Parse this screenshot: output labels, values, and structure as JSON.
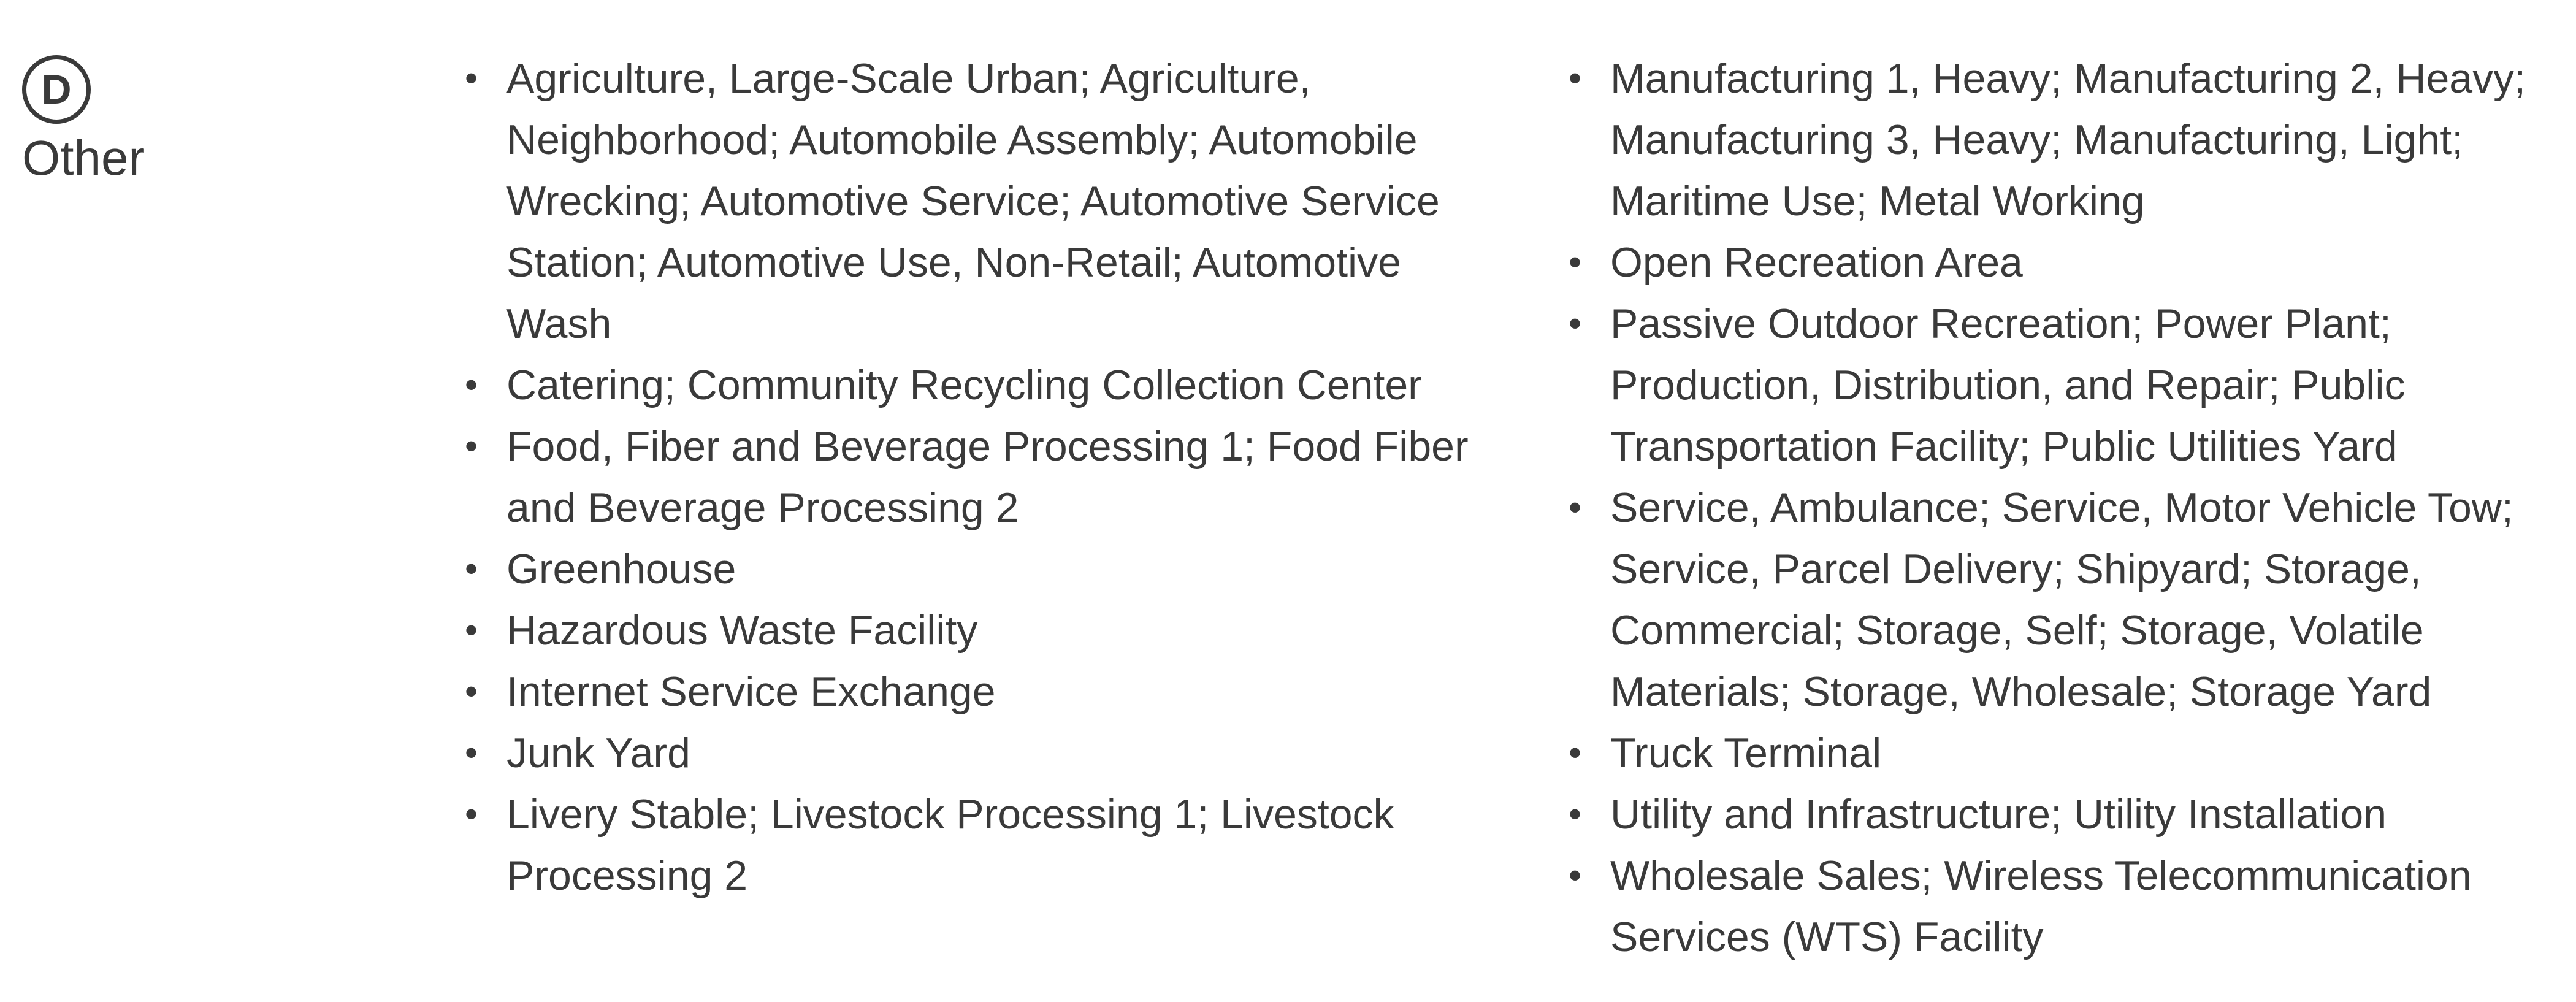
{
  "category": {
    "badge_letter": "D",
    "name": "Other"
  },
  "columns": [
    {
      "items": [
        "Agriculture, Large-Scale Urban; Agriculture, Neighborhood; Automobile Assembly; Automobile Wrecking; Automotive Service; Automotive Service Station; Automotive Use, Non-Retail; Automotive Wash",
        "Catering; Community Recycling Collection Center",
        "Food, Fiber and Beverage Processing 1; Food Fiber and Beverage Processing 2",
        "Greenhouse",
        "Hazardous Waste Facility",
        "Internet Service Exchange",
        "Junk Yard",
        "Livery Stable; Livestock Processing 1; Livestock Processing 2"
      ]
    },
    {
      "items": [
        "Manufacturing 1, Heavy; Manufacturing 2, Heavy; Manufacturing 3, Heavy; Manufacturing, Light; Maritime Use; Metal Working",
        "Open Recreation Area",
        "Passive Outdoor Recreation; Power Plant; Production, Distribution, and Repair; Public Transportation Facility; Public Utilities Yard",
        "Service, Ambulance; Service, Motor Vehicle Tow; Service, Parcel Delivery; Shipyard; Storage, Commercial; Storage, Self; Storage, Volatile Materials; Storage, Wholesale; Storage Yard",
        "Truck Terminal",
        "Utility and Infrastructure; Utility Installation",
        "Wholesale Sales; Wireless Telecommunication Services (WTS) Facility"
      ]
    }
  ],
  "bullet_glyph": "•"
}
